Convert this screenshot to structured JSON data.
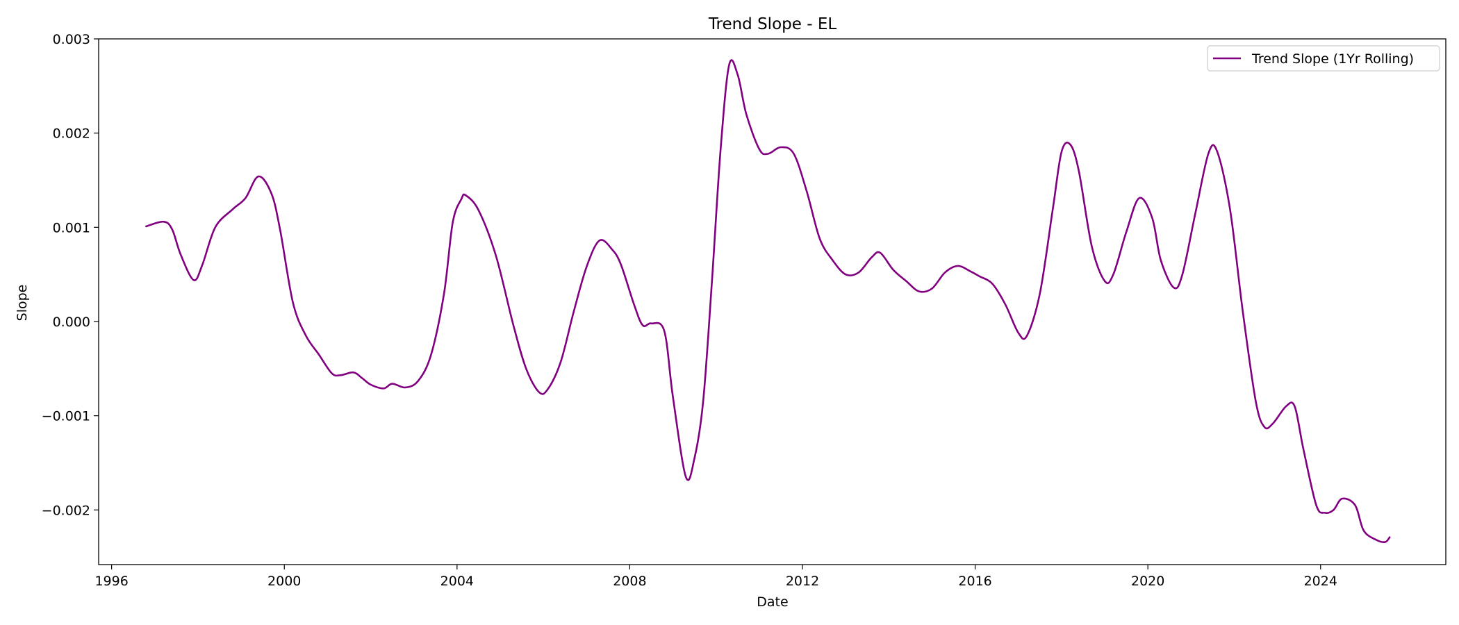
{
  "chart_data": {
    "type": "line",
    "title": "Trend Slope - EL",
    "xlabel": "Date",
    "ylabel": "Slope",
    "xlim": [
      1995.7,
      2026.9
    ],
    "ylim": [
      -0.00258,
      0.003
    ],
    "x_ticks": [
      1996,
      2000,
      2004,
      2008,
      2012,
      2016,
      2020,
      2024
    ],
    "y_ticks": [
      -0.002,
      -0.001,
      0.0,
      0.001,
      0.002,
      0.003
    ],
    "y_tick_labels": [
      "−0.002",
      "−0.001",
      "0.000",
      "0.001",
      "0.002",
      "0.003"
    ],
    "grid": false,
    "legend_position": "top-right",
    "series": [
      {
        "name": "Trend Slope (1Yr Rolling)",
        "color": "#800080",
        "points": [
          [
            1996.8,
            0.00101
          ],
          [
            1997.2,
            0.00106
          ],
          [
            1997.4,
            0.00098
          ],
          [
            1997.6,
            0.00071
          ],
          [
            1997.9,
            0.00044
          ],
          [
            1998.1,
            0.0006
          ],
          [
            1998.4,
            0.001
          ],
          [
            1998.8,
            0.00119
          ],
          [
            1999.1,
            0.00131
          ],
          [
            1999.4,
            0.00154
          ],
          [
            1999.7,
            0.00136
          ],
          [
            1999.9,
            0.00098
          ],
          [
            2000.2,
            0.0002
          ],
          [
            2000.5,
            -0.00015
          ],
          [
            2000.8,
            -0.00035
          ],
          [
            2001.1,
            -0.00055
          ],
          [
            2001.3,
            -0.00057
          ],
          [
            2001.6,
            -0.00054
          ],
          [
            2001.8,
            -0.0006
          ],
          [
            2002.0,
            -0.00067
          ],
          [
            2002.3,
            -0.00071
          ],
          [
            2002.5,
            -0.00066
          ],
          [
            2002.8,
            -0.0007
          ],
          [
            2003.1,
            -0.00063
          ],
          [
            2003.4,
            -0.00035
          ],
          [
            2003.7,
            0.0003
          ],
          [
            2003.9,
            0.00105
          ],
          [
            2004.1,
            0.0013
          ],
          [
            2004.2,
            0.00134
          ],
          [
            2004.5,
            0.00118
          ],
          [
            2004.9,
            0.0007
          ],
          [
            2005.3,
            -3e-05
          ],
          [
            2005.6,
            -0.0005
          ],
          [
            2005.9,
            -0.00075
          ],
          [
            2006.1,
            -0.00072
          ],
          [
            2006.4,
            -0.00043
          ],
          [
            2006.7,
            0.0001
          ],
          [
            2007.0,
            0.00058
          ],
          [
            2007.3,
            0.00086
          ],
          [
            2007.6,
            0.00076
          ],
          [
            2007.8,
            0.0006
          ],
          [
            2008.1,
            0.00018
          ],
          [
            2008.3,
            -4e-05
          ],
          [
            2008.5,
            -2e-05
          ],
          [
            2008.8,
            -0.0001
          ],
          [
            2009.0,
            -0.0008
          ],
          [
            2009.3,
            -0.00165
          ],
          [
            2009.5,
            -0.00145
          ],
          [
            2009.7,
            -0.00085
          ],
          [
            2009.9,
            0.0004
          ],
          [
            2010.1,
            0.0018
          ],
          [
            2010.3,
            0.00272
          ],
          [
            2010.5,
            0.00262
          ],
          [
            2010.7,
            0.0022
          ],
          [
            2011.0,
            0.00183
          ],
          [
            2011.2,
            0.00178
          ],
          [
            2011.5,
            0.00185
          ],
          [
            2011.8,
            0.00178
          ],
          [
            2012.1,
            0.00138
          ],
          [
            2012.4,
            0.00088
          ],
          [
            2012.7,
            0.00065
          ],
          [
            2013.0,
            0.0005
          ],
          [
            2013.3,
            0.00052
          ],
          [
            2013.6,
            0.00068
          ],
          [
            2013.8,
            0.00073
          ],
          [
            2014.1,
            0.00055
          ],
          [
            2014.4,
            0.00043
          ],
          [
            2014.7,
            0.00032
          ],
          [
            2015.0,
            0.00035
          ],
          [
            2015.3,
            0.00052
          ],
          [
            2015.6,
            0.00059
          ],
          [
            2015.9,
            0.00053
          ],
          [
            2016.1,
            0.00048
          ],
          [
            2016.4,
            0.0004
          ],
          [
            2016.7,
            0.00018
          ],
          [
            2017.0,
            -0.00012
          ],
          [
            2017.2,
            -0.00015
          ],
          [
            2017.5,
            0.0003
          ],
          [
            2017.8,
            0.0012
          ],
          [
            2018.0,
            0.0018
          ],
          [
            2018.2,
            0.00188
          ],
          [
            2018.4,
            0.0016
          ],
          [
            2018.7,
            0.0008
          ],
          [
            2019.0,
            0.00043
          ],
          [
            2019.2,
            0.0005
          ],
          [
            2019.5,
            0.00095
          ],
          [
            2019.8,
            0.00131
          ],
          [
            2020.1,
            0.0011
          ],
          [
            2020.3,
            0.00065
          ],
          [
            2020.6,
            0.00036
          ],
          [
            2020.8,
            0.0005
          ],
          [
            2021.1,
            0.00115
          ],
          [
            2021.4,
            0.00178
          ],
          [
            2021.6,
            0.00181
          ],
          [
            2021.9,
            0.0012
          ],
          [
            2022.2,
            0.0001
          ],
          [
            2022.5,
            -0.00085
          ],
          [
            2022.7,
            -0.00112
          ],
          [
            2022.9,
            -0.00108
          ],
          [
            2023.2,
            -0.0009
          ],
          [
            2023.4,
            -0.0009
          ],
          [
            2023.6,
            -0.00135
          ],
          [
            2023.9,
            -0.00195
          ],
          [
            2024.1,
            -0.00203
          ],
          [
            2024.3,
            -0.002
          ],
          [
            2024.5,
            -0.00188
          ],
          [
            2024.8,
            -0.00195
          ],
          [
            2025.0,
            -0.00222
          ],
          [
            2025.3,
            -0.00232
          ],
          [
            2025.5,
            -0.00234
          ],
          [
            2025.6,
            -0.00229
          ]
        ]
      }
    ]
  }
}
